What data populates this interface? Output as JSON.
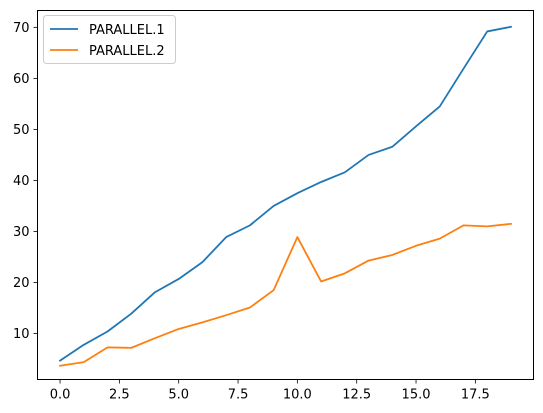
{
  "chart_data": {
    "type": "line",
    "title": "",
    "xlabel": "",
    "ylabel": "",
    "x": [
      0,
      1,
      2,
      3,
      4,
      5,
      6,
      7,
      8,
      9,
      10,
      11,
      12,
      13,
      14,
      15,
      16,
      17,
      18,
      19
    ],
    "xlim": [
      -0.95,
      19.95
    ],
    "ylim": [
      1.0,
      73.3
    ],
    "xticks": [
      0,
      2.5,
      5,
      7.5,
      10,
      12.5,
      15,
      17.5
    ],
    "xtick_labels": [
      "0.0",
      "2.5",
      "5.0",
      "7.5",
      "10.0",
      "12.5",
      "15.0",
      "17.5"
    ],
    "yticks": [
      10,
      20,
      30,
      40,
      50,
      60,
      70
    ],
    "ytick_labels": [
      "10",
      "20",
      "30",
      "40",
      "50",
      "60",
      "70"
    ],
    "grid": false,
    "legend_position": "top-left",
    "series": [
      {
        "name": "PARALLEL.1",
        "color": "#1f77b4",
        "values": [
          4.7,
          7.8,
          10.4,
          13.9,
          18.1,
          20.7,
          24.0,
          28.9,
          31.2,
          35.0,
          37.5,
          39.7,
          41.6,
          45.0,
          46.6,
          50.6,
          54.5,
          61.9,
          69.2,
          70.1
        ]
      },
      {
        "name": "PARALLEL.2",
        "color": "#ff7f0e",
        "values": [
          3.7,
          4.4,
          7.3,
          7.2,
          9.1,
          10.9,
          12.2,
          13.6,
          15.1,
          18.5,
          28.9,
          20.2,
          21.8,
          24.3,
          25.4,
          27.2,
          28.6,
          31.2,
          31.0,
          31.5
        ]
      }
    ]
  }
}
